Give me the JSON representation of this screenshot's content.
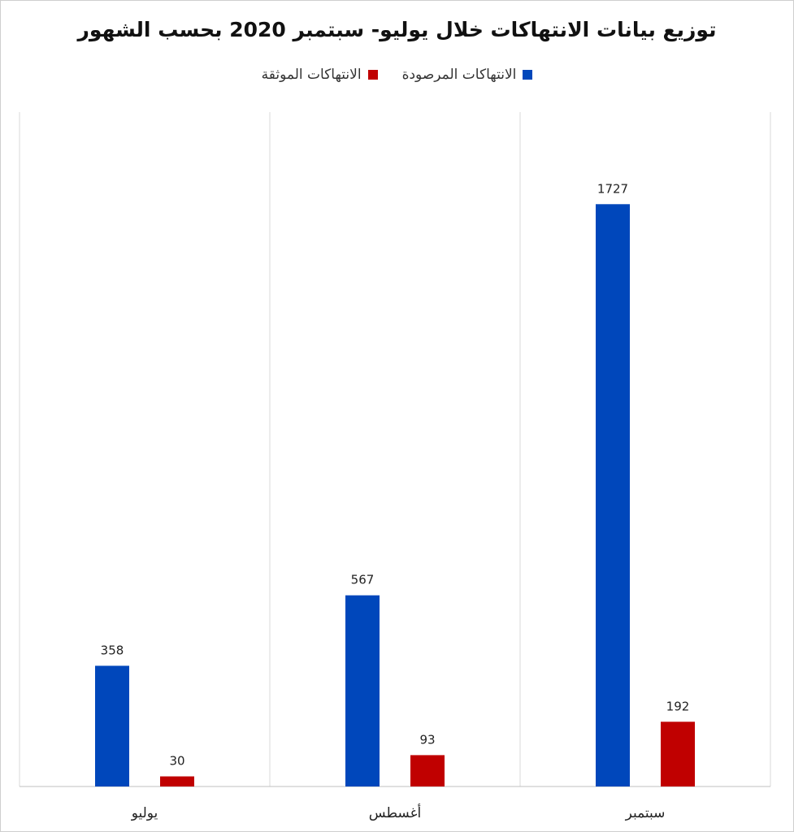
{
  "chart_data": {
    "type": "bar",
    "title": "توزيع بيانات الانتهاكات خلال يوليو- سبتمبر 2020 بحسب الشهور",
    "categories": [
      "يوليو",
      "أغسطس",
      "سبتمبر"
    ],
    "series": [
      {
        "name": "الانتهاكات المرصودة",
        "color": "#0047BB",
        "values": [
          358,
          567,
          1727
        ]
      },
      {
        "name": "الانتهاكات الموثقة",
        "color": "#C00000",
        "values": [
          30,
          93,
          192
        ]
      }
    ],
    "ylim": [
      0,
      2000
    ],
    "grid": false,
    "legend_position": "top",
    "data_labels": true
  }
}
